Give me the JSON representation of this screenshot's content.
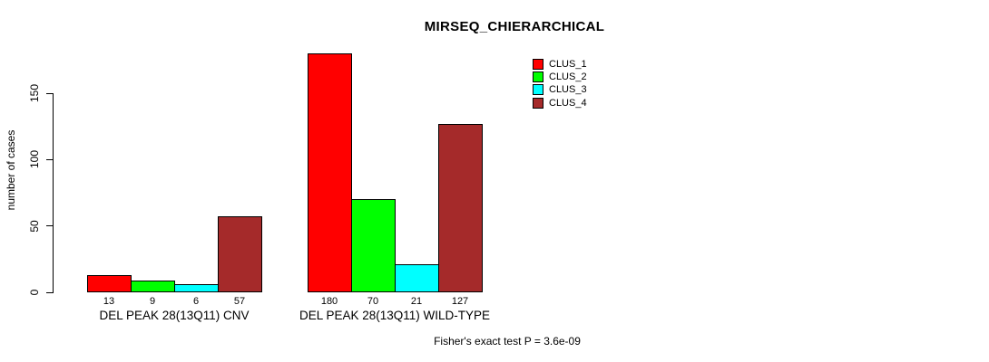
{
  "chart_data": {
    "type": "bar",
    "title": "MIRSEQ_CHIERARCHICAL",
    "xlabel": "",
    "ylabel": "number of cases",
    "ylim": [
      0,
      183
    ],
    "yticks": [
      0,
      50,
      100,
      150
    ],
    "grid": false,
    "legend_position": "top-right",
    "categories": [
      "DEL PEAK 28(13Q11) CNV",
      "DEL PEAK 28(13Q11) WILD-TYPE"
    ],
    "series": [
      {
        "name": "CLUS_1",
        "color": "#FF0000",
        "values": [
          13,
          180
        ]
      },
      {
        "name": "CLUS_2",
        "color": "#00FF00",
        "values": [
          9,
          70
        ]
      },
      {
        "name": "CLUS_3",
        "color": "#00FFFF",
        "values": [
          6,
          21
        ]
      },
      {
        "name": "CLUS_4",
        "color": "#A52A2A",
        "values": [
          57,
          127
        ]
      }
    ],
    "bar_value_labels": [
      [
        "13",
        "9",
        "6",
        "57"
      ],
      [
        "180",
        "70",
        "21",
        "127"
      ]
    ],
    "annotation": "Fisher's exact test P = 3.6e-09"
  },
  "colors": {
    "axis": "#000000",
    "text": "#000000",
    "background": "#FFFFFF"
  }
}
